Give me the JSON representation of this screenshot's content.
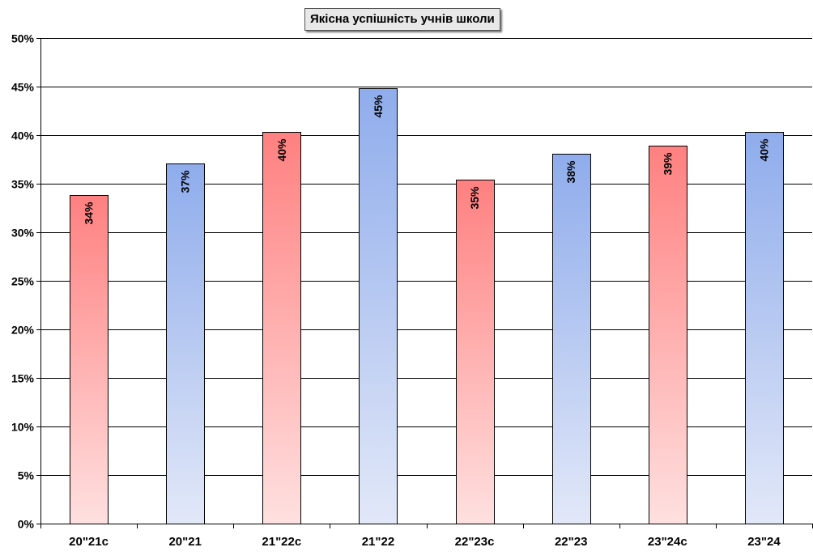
{
  "chart_data": {
    "type": "bar",
    "title": "Якісна успішність учнів школи",
    "xlabel": "",
    "ylabel": "",
    "categories": [
      "20\"21с",
      "20\"21",
      "21\"22с",
      "21\"22",
      "22\"23с",
      "22\"23",
      "23\"24с",
      "23\"24"
    ],
    "values": [
      33.8,
      37.1,
      40.3,
      44.8,
      35.4,
      38.1,
      38.9,
      40.3
    ],
    "data_labels": [
      "34%",
      "37%",
      "40%",
      "45%",
      "35%",
      "38%",
      "39%",
      "40%"
    ],
    "bar_colors": [
      "red",
      "blue",
      "red",
      "blue",
      "red",
      "blue",
      "red",
      "blue"
    ],
    "ylim": [
      0,
      50
    ],
    "yticks": [
      0,
      5,
      10,
      15,
      20,
      25,
      30,
      35,
      40,
      45,
      50
    ],
    "ytick_labels": [
      "0%",
      "5%",
      "10%",
      "15%",
      "20%",
      "25%",
      "30%",
      "35%",
      "40%",
      "45%",
      "50%"
    ],
    "grid": true,
    "legend": "none",
    "colors": {
      "red_top": "#ff8080",
      "red_bottom": "#ffe0e0",
      "blue_top": "#8facec",
      "blue_bottom": "#e2e8f8",
      "gridline": "#000000"
    }
  }
}
